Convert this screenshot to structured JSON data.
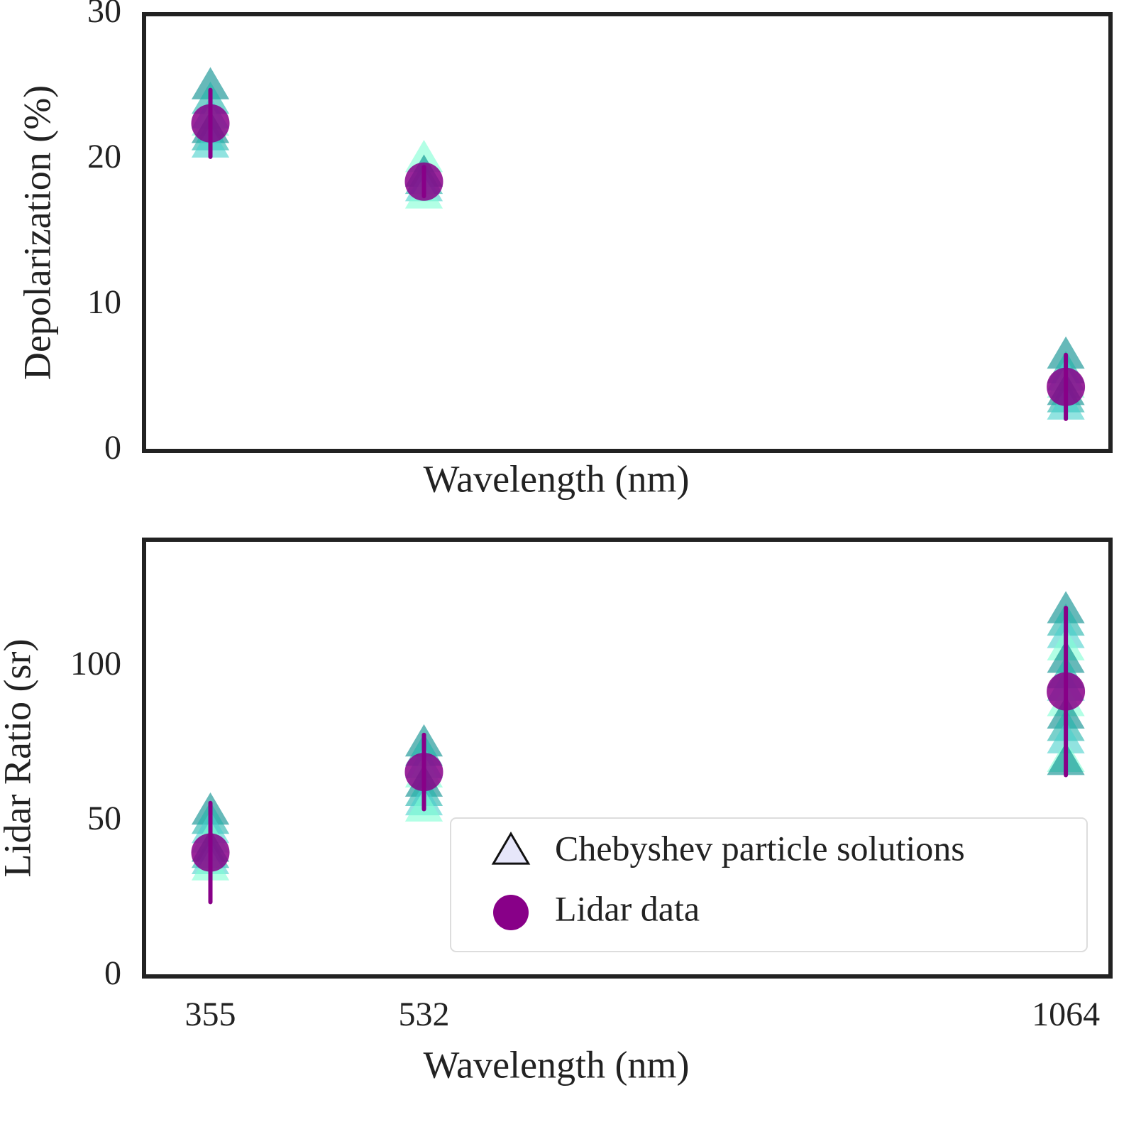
{
  "chart_data": [
    {
      "type": "scatter",
      "ylabel": "Depolarization (%)",
      "xlabel": "Wavelength (nm)",
      "xlim": [
        300,
        1101
      ],
      "ylim": [
        0,
        30
      ],
      "yticks": [
        0,
        10,
        20,
        30
      ],
      "series": [
        {
          "marker": "triangle",
          "palette": [
            "#008b8b",
            "#20b2aa",
            "#48d1cc",
            "#7fffd4"
          ],
          "x": [
            355,
            355,
            355,
            355,
            355,
            355,
            355,
            532,
            532,
            532,
            532,
            532,
            1064,
            1064,
            1064,
            1064,
            1064,
            1064,
            1064
          ],
          "values": [
            25,
            24,
            23,
            22.5,
            22,
            21.5,
            21,
            20,
            19,
            18.5,
            18,
            17.5,
            6.5,
            5.5,
            5,
            4.5,
            4,
            3.5,
            3
          ]
        },
        {
          "marker": "circle",
          "color": "#880088",
          "x": [
            355,
            532,
            1064
          ],
          "values": [
            22.5,
            18.5,
            4.4
          ],
          "errors": [
            2.3,
            1,
            2.2
          ]
        }
      ]
    },
    {
      "type": "scatter",
      "ylabel": "Lidar Ratio (sr)",
      "xlabel": "Wavelength (nm)",
      "xlim": [
        300,
        1101
      ],
      "ylim": [
        0,
        141
      ],
      "yticks": [
        0,
        50,
        100
      ],
      "xticks": [
        355,
        532,
        1064
      ],
      "legend": "lower right",
      "series": [
        {
          "name": "Chebyshev particle solutions",
          "marker": "triangle",
          "legend_color": "#e6e6fa",
          "palette": [
            "#008b8b",
            "#20b2aa",
            "#48d1cc",
            "#7fffd4"
          ],
          "x": [
            355,
            355,
            355,
            355,
            355,
            355,
            355,
            355,
            532,
            532,
            532,
            532,
            532,
            532,
            532,
            532,
            1064,
            1064,
            1064,
            1064,
            1064,
            1064,
            1064,
            1064,
            1064,
            1064,
            1064,
            1064,
            1064
          ],
          "values": [
            53,
            50,
            47,
            44,
            41,
            39,
            37,
            35,
            75,
            72,
            68,
            65,
            62,
            59,
            56,
            54,
            118,
            114,
            110,
            106,
            102,
            97,
            93,
            88,
            84,
            80,
            76,
            70,
            69
          ]
        },
        {
          "name": "Lidar data",
          "marker": "circle",
          "color": "#880088",
          "x": [
            355,
            532,
            1064
          ],
          "values": [
            40,
            66,
            92
          ],
          "errors": [
            16,
            12,
            27
          ]
        }
      ]
    }
  ]
}
